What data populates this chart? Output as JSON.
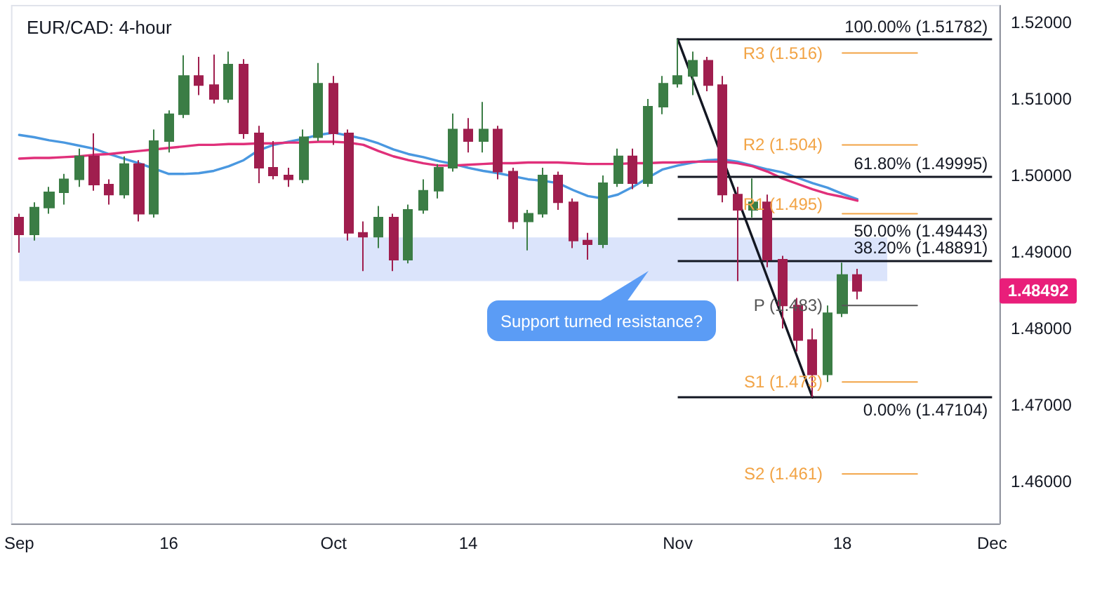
{
  "chart_data": {
    "type": "candlestick",
    "title": "EUR/CAD: 4-hour",
    "categories": [
      "Sep",
      null,
      null,
      null,
      null,
      null,
      null,
      null,
      null,
      null,
      "16",
      null,
      null,
      null,
      null,
      null,
      null,
      null,
      null,
      null,
      null,
      "Oct",
      null,
      null,
      null,
      null,
      null,
      null,
      null,
      null,
      "14",
      null,
      null,
      null,
      null,
      null,
      null,
      null,
      null,
      null,
      null,
      null,
      null,
      null,
      "Nov",
      null,
      null,
      null,
      null,
      null,
      null,
      null,
      null,
      null,
      null,
      "18",
      null,
      null,
      null,
      null,
      null,
      null,
      null,
      null,
      null,
      "Dec"
    ],
    "ohlc": [
      [
        1.4945,
        1.495,
        1.4899,
        1.4923
      ],
      [
        1.4923,
        1.4965,
        1.4915,
        1.4958
      ],
      [
        1.4958,
        1.4985,
        1.495,
        1.4978
      ],
      [
        1.4978,
        1.5002,
        1.4962,
        1.4995
      ],
      [
        1.4995,
        1.5035,
        1.4985,
        1.5025
      ],
      [
        1.5025,
        1.5055,
        1.498,
        1.4988
      ],
      [
        1.4988,
        1.4995,
        1.4962,
        1.4975
      ],
      [
        1.4975,
        1.5025,
        1.497,
        1.5015
      ],
      [
        1.5015,
        1.502,
        1.494,
        1.495
      ],
      [
        1.495,
        1.506,
        1.4945,
        1.5045
      ],
      [
        1.5045,
        1.5085,
        1.503,
        1.508
      ],
      [
        1.508,
        1.5157,
        1.5075,
        1.513
      ],
      [
        1.513,
        1.5155,
        1.5105,
        1.5118
      ],
      [
        1.5118,
        1.5158,
        1.5094,
        1.51
      ],
      [
        1.51,
        1.5162,
        1.5095,
        1.5145
      ],
      [
        1.5145,
        1.5152,
        1.5048,
        1.5055
      ],
      [
        1.5055,
        1.5065,
        1.499,
        1.501
      ],
      [
        1.501,
        1.5045,
        1.4995,
        1.5
      ],
      [
        1.5,
        1.501,
        1.4985,
        1.4995
      ],
      [
        1.4995,
        1.506,
        1.499,
        1.505
      ],
      [
        1.505,
        1.5147,
        1.5045,
        1.512
      ],
      [
        1.512,
        1.513,
        1.504,
        1.5055
      ],
      [
        1.5055,
        1.506,
        1.4915,
        1.4925
      ],
      [
        1.4925,
        1.494,
        1.4875,
        1.492
      ],
      [
        1.492,
        1.496,
        1.4905,
        1.4945
      ],
      [
        1.4945,
        1.495,
        1.4875,
        1.489
      ],
      [
        1.489,
        1.4962,
        1.4885,
        1.4955
      ],
      [
        1.4955,
        1.4995,
        1.495,
        1.498
      ],
      [
        1.498,
        1.5015,
        1.497,
        1.501
      ],
      [
        1.501,
        1.5081,
        1.5005,
        1.506
      ],
      [
        1.506,
        1.5075,
        1.503,
        1.5045
      ],
      [
        1.5045,
        1.5096,
        1.503,
        1.506
      ],
      [
        1.506,
        1.5065,
        1.4995,
        1.5005
      ],
      [
        1.5005,
        1.501,
        1.493,
        1.494
      ],
      [
        1.494,
        1.4955,
        1.4902,
        1.495
      ],
      [
        1.495,
        1.501,
        1.4945,
        1.5
      ],
      [
        1.5,
        1.5005,
        1.4955,
        1.4965
      ],
      [
        1.4965,
        1.497,
        1.4905,
        1.4915
      ],
      [
        1.4915,
        1.4925,
        1.489,
        1.491
      ],
      [
        1.491,
        1.5,
        1.4905,
        1.499
      ],
      [
        1.499,
        1.5035,
        1.4985,
        1.5025
      ],
      [
        1.5025,
        1.5035,
        1.4982,
        1.499
      ],
      [
        1.499,
        1.51,
        1.4985,
        1.509
      ],
      [
        1.509,
        1.513,
        1.508,
        1.512
      ],
      [
        1.512,
        1.51782,
        1.5115,
        1.513
      ],
      [
        1.513,
        1.5162,
        1.5105,
        1.515
      ],
      [
        1.515,
        1.5155,
        1.511,
        1.5118
      ],
      [
        1.5118,
        1.513,
        1.4965,
        1.4975
      ],
      [
        1.4975,
        1.4985,
        1.4862,
        1.4955
      ],
      [
        1.4955,
        1.4996,
        1.4945,
        1.4965
      ],
      [
        1.4965,
        1.4975,
        1.488,
        1.489
      ],
      [
        1.489,
        1.4895,
        1.48,
        1.483
      ],
      [
        1.483,
        1.484,
        1.477,
        1.4785
      ],
      [
        1.4785,
        1.48,
        1.47104,
        1.474
      ],
      [
        1.474,
        1.483,
        1.473,
        1.482
      ],
      [
        1.482,
        1.4886,
        1.4815,
        1.487
      ],
      [
        1.487,
        1.4878,
        1.4838,
        1.48492
      ],
      null,
      null,
      null,
      null,
      null,
      null,
      null,
      null,
      null
    ],
    "colors": [
      "#a01e4e",
      "#3b7d45",
      "#3b7d45",
      "#3b7d45",
      "#3b7d45",
      "#a01e4e",
      "#a01e4e",
      "#3b7d45",
      "#a01e4e",
      "#3b7d45",
      "#3b7d45",
      "#3b7d45",
      "#a01e4e",
      "#a01e4e",
      "#3b7d45",
      "#a01e4e",
      "#a01e4e",
      "#a01e4e",
      "#a01e4e",
      "#3b7d45",
      "#3b7d45",
      "#a01e4e",
      "#a01e4e",
      "#a01e4e",
      "#3b7d45",
      "#a01e4e",
      "#3b7d45",
      "#3b7d45",
      "#3b7d45",
      "#3b7d45",
      "#a01e4e",
      "#3b7d45",
      "#a01e4e",
      "#a01e4e",
      "#3b7d45",
      "#3b7d45",
      "#a01e4e",
      "#a01e4e",
      "#a01e4e",
      "#3b7d45",
      "#3b7d45",
      "#a01e4e",
      "#3b7d45",
      "#3b7d45",
      "#3b7d45",
      "#3b7d45",
      "#a01e4e",
      "#a01e4e",
      "#a01e4e",
      "#3b7d45",
      "#a01e4e",
      "#a01e4e",
      "#a01e4e",
      "#a01e4e",
      "#3b7d45",
      "#3b7d45",
      "#a01e4e",
      null,
      null,
      null,
      null,
      null,
      null,
      null,
      null,
      null
    ],
    "series": [
      {
        "type": "line",
        "color": "#4a98e0",
        "values": [
          1.5053,
          1.505,
          1.5046,
          1.5043,
          1.5039,
          1.5035,
          1.5028,
          1.5022,
          1.5016,
          1.5009,
          1.5002,
          1.5002,
          1.5003,
          1.5006,
          1.5012,
          1.502,
          1.5033,
          1.504,
          1.5044,
          1.5048,
          1.5053,
          1.5056,
          1.5052,
          1.5048,
          1.5042,
          1.5034,
          1.5028,
          1.5024,
          1.5019,
          1.5015,
          1.501,
          1.5006,
          1.5003,
          1.4999,
          1.4995,
          1.4993,
          1.499,
          1.4981,
          1.4973,
          1.497,
          1.4975,
          1.4985,
          1.4997,
          1.5008,
          1.5013,
          1.5017,
          1.502,
          1.5021,
          1.5018,
          1.5013,
          1.5008,
          1.5004,
          1.4997,
          1.499,
          1.4984,
          1.4976,
          1.4969,
          null,
          null,
          null,
          null,
          null,
          null,
          null,
          null,
          null
        ]
      },
      {
        "type": "line",
        "color": "#e0307a",
        "values": [
          1.5022,
          1.5023,
          1.5023,
          1.5024,
          1.5025,
          1.5027,
          1.5028,
          1.503,
          1.5032,
          1.5034,
          1.5036,
          1.5038,
          1.504,
          1.504,
          1.5041,
          1.5041,
          1.5042,
          1.5042,
          1.5043,
          1.5043,
          1.5044,
          1.5044,
          1.5043,
          1.504,
          1.5032,
          1.5025,
          1.502,
          1.5016,
          1.5013,
          1.5013,
          1.5014,
          1.5015,
          1.5016,
          1.5016,
          1.5017,
          1.5017,
          1.5017,
          1.5016,
          1.5015,
          1.5015,
          1.5015,
          1.5016,
          1.5016,
          1.5017,
          1.5017,
          1.5018,
          1.5018,
          1.5018,
          1.5016,
          1.5012,
          1.5005,
          1.4996,
          1.4989,
          1.4982,
          1.4976,
          1.4972,
          1.4967,
          null,
          null,
          null,
          null,
          null,
          null,
          null,
          null,
          null
        ]
      },
      {
        "type": "line",
        "color": "#131722",
        "values": [
          null,
          null,
          null,
          null,
          null,
          null,
          null,
          null,
          null,
          null,
          null,
          null,
          null,
          null,
          null,
          null,
          null,
          null,
          null,
          null,
          null,
          null,
          null,
          null,
          null,
          null,
          null,
          null,
          null,
          null,
          null,
          null,
          null,
          null,
          null,
          null,
          null,
          null,
          null,
          null,
          null,
          null,
          null,
          null,
          1.5178,
          null,
          null,
          null,
          null,
          null,
          null,
          null,
          null,
          1.471,
          null,
          null,
          null,
          null,
          null,
          null,
          null,
          null,
          null,
          null,
          null,
          null
        ]
      },
      {
        "type": "line",
        "name": "R3 (1.516)",
        "color": "#f2a446",
        "values": [
          null,
          null,
          null,
          null,
          null,
          null,
          null,
          null,
          null,
          null,
          null,
          null,
          null,
          null,
          null,
          null,
          null,
          null,
          null,
          null,
          null,
          null,
          null,
          null,
          null,
          null,
          null,
          null,
          null,
          null,
          null,
          null,
          null,
          null,
          null,
          null,
          null,
          null,
          null,
          null,
          null,
          null,
          null,
          null,
          null,
          null,
          null,
          null,
          null,
          null,
          null,
          null,
          null,
          null,
          null,
          1.516,
          1.516,
          1.516,
          1.516,
          1.516,
          1.516,
          null,
          null,
          null,
          null,
          null
        ]
      },
      {
        "type": "line",
        "name": "R2 (1.504)",
        "color": "#f2a446",
        "values": [
          null,
          null,
          null,
          null,
          null,
          null,
          null,
          null,
          null,
          null,
          null,
          null,
          null,
          null,
          null,
          null,
          null,
          null,
          null,
          null,
          null,
          null,
          null,
          null,
          null,
          null,
          null,
          null,
          null,
          null,
          null,
          null,
          null,
          null,
          null,
          null,
          null,
          null,
          null,
          null,
          null,
          null,
          null,
          null,
          null,
          null,
          null,
          null,
          null,
          null,
          null,
          null,
          null,
          null,
          null,
          1.504,
          1.504,
          1.504,
          1.504,
          1.504,
          1.504,
          null,
          null,
          null,
          null,
          null
        ]
      },
      {
        "type": "line",
        "name": "R1 (1.495)",
        "color": "#f2a446",
        "values": [
          null,
          null,
          null,
          null,
          null,
          null,
          null,
          null,
          null,
          null,
          null,
          null,
          null,
          null,
          null,
          null,
          null,
          null,
          null,
          null,
          null,
          null,
          null,
          null,
          null,
          null,
          null,
          null,
          null,
          null,
          null,
          null,
          null,
          null,
          null,
          null,
          null,
          null,
          null,
          null,
          null,
          null,
          null,
          null,
          null,
          null,
          null,
          null,
          null,
          null,
          null,
          null,
          null,
          null,
          null,
          1.495,
          1.495,
          1.495,
          1.495,
          1.495,
          1.495,
          null,
          null,
          null,
          null,
          null
        ]
      },
      {
        "type": "line",
        "name": "P (1.483)",
        "color": "#555555",
        "values": [
          null,
          null,
          null,
          null,
          null,
          null,
          null,
          null,
          null,
          null,
          null,
          null,
          null,
          null,
          null,
          null,
          null,
          null,
          null,
          null,
          null,
          null,
          null,
          null,
          null,
          null,
          null,
          null,
          null,
          null,
          null,
          null,
          null,
          null,
          null,
          null,
          null,
          null,
          null,
          null,
          null,
          null,
          null,
          null,
          null,
          null,
          null,
          null,
          null,
          null,
          null,
          null,
          null,
          null,
          null,
          1.483,
          1.483,
          1.483,
          1.483,
          1.483,
          1.483,
          null,
          null,
          null,
          null,
          null
        ]
      },
      {
        "type": "line",
        "name": "S1 (1.473)",
        "color": "#f2a446",
        "values": [
          null,
          null,
          null,
          null,
          null,
          null,
          null,
          null,
          null,
          null,
          null,
          null,
          null,
          null,
          null,
          null,
          null,
          null,
          null,
          null,
          null,
          null,
          null,
          null,
          null,
          null,
          null,
          null,
          null,
          null,
          null,
          null,
          null,
          null,
          null,
          null,
          null,
          null,
          null,
          null,
          null,
          null,
          null,
          null,
          null,
          null,
          null,
          null,
          null,
          null,
          null,
          null,
          null,
          null,
          null,
          1.473,
          1.473,
          1.473,
          1.473,
          1.473,
          1.473,
          null,
          null,
          null,
          null,
          null
        ]
      },
      {
        "type": "line",
        "name": "S2 (1.461)",
        "color": "#f2a446",
        "values": [
          null,
          null,
          null,
          null,
          null,
          null,
          null,
          null,
          null,
          null,
          null,
          null,
          null,
          null,
          null,
          null,
          null,
          null,
          null,
          null,
          null,
          null,
          null,
          null,
          null,
          null,
          null,
          null,
          null,
          null,
          null,
          null,
          null,
          null,
          null,
          null,
          null,
          null,
          null,
          null,
          null,
          null,
          null,
          null,
          null,
          null,
          null,
          null,
          null,
          null,
          null,
          null,
          null,
          null,
          null,
          1.461,
          1.461,
          1.461,
          1.461,
          1.461,
          1.461,
          null,
          null,
          null,
          null,
          null
        ]
      }
    ],
    "ylim": [
      1.4545,
      1.5222
    ],
    "yticks": [
      {
        "value": 1.46,
        "label": "1.46000"
      },
      {
        "value": 1.47,
        "label": "1.47000"
      },
      {
        "value": 1.48,
        "label": "1.48000"
      },
      {
        "value": 1.49,
        "label": "1.49000"
      },
      {
        "value": 1.5,
        "label": "1.50000"
      },
      {
        "value": 1.51,
        "label": "1.51000"
      },
      {
        "value": 1.52,
        "label": "1.52000"
      }
    ],
    "ref_lines": [
      {
        "axis": "y",
        "value": 1.51782,
        "label": "100.00% (1.51782)",
        "color": "#131722"
      },
      {
        "axis": "y",
        "value": 1.49995,
        "label": "61.80% (1.49995)",
        "color": "#131722"
      },
      {
        "axis": "y",
        "value": 1.49443,
        "label": "50.00% (1.49443)",
        "color": "#131722"
      },
      {
        "axis": "y",
        "value": 1.48891,
        "label": "38.20% (1.48891)",
        "color": "#131722"
      },
      {
        "axis": "y",
        "value": 1.47104,
        "label": "0.00% (1.47104)",
        "color": "#131722"
      }
    ],
    "bands": [
      {
        "axis": "y",
        "from": 1.4862,
        "to": 1.4919,
        "color": "#dbe4fb"
      }
    ],
    "annotations": [
      "Support turned resistance?",
      "1.48492"
    ],
    "marker": "none"
  }
}
